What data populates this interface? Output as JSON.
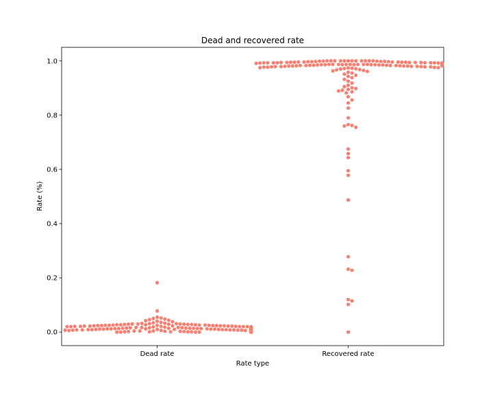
{
  "chart_data": {
    "type": "scatter",
    "subtype": "swarm",
    "title": "Dead and recovered rate",
    "xlabel": "Rate type",
    "ylabel": "Rate (%)",
    "categories": [
      "Dead rate",
      "Recovered rate"
    ],
    "ylim": [
      -0.05,
      1.05
    ],
    "yticks": [
      "0.0",
      "0.2",
      "0.4",
      "0.6",
      "0.8",
      "1.0"
    ],
    "ytick_values": [
      0.0,
      0.2,
      0.4,
      0.6,
      0.8,
      1.0
    ],
    "color": "#fa8072",
    "grid": false,
    "series": [
      {
        "category": "Dead rate",
        "values": [
          0.182,
          0.078,
          0.055,
          0.052,
          0.05,
          0.048,
          0.046,
          0.044,
          0.042,
          0.04,
          0.038,
          0.036,
          0.034,
          0.033,
          0.032,
          0.031,
          0.031,
          0.03,
          0.03,
          0.03,
          0.029,
          0.029,
          0.029,
          0.028,
          0.028,
          0.028,
          0.027,
          0.027,
          0.027,
          0.027,
          0.026,
          0.026,
          0.026,
          0.025,
          0.025,
          0.025,
          0.025,
          0.024,
          0.024,
          0.024,
          0.024,
          0.023,
          0.023,
          0.023,
          0.023,
          0.022,
          0.022,
          0.022,
          0.022,
          0.021,
          0.021,
          0.021,
          0.021,
          0.02,
          0.02,
          0.02,
          0.02,
          0.02,
          0.019,
          0.019,
          0.019,
          0.019,
          0.018,
          0.018,
          0.018,
          0.018,
          0.018,
          0.017,
          0.017,
          0.017,
          0.017,
          0.016,
          0.016,
          0.016,
          0.016,
          0.015,
          0.015,
          0.015,
          0.015,
          0.015,
          0.014,
          0.014,
          0.014,
          0.014,
          0.013,
          0.013,
          0.013,
          0.013,
          0.012,
          0.012,
          0.012,
          0.012,
          0.012,
          0.011,
          0.011,
          0.011,
          0.011,
          0.01,
          0.01,
          0.01,
          0.01,
          0.01,
          0.009,
          0.009,
          0.009,
          0.009,
          0.008,
          0.008,
          0.008,
          0.008,
          0.008,
          0.007,
          0.007,
          0.007,
          0.007,
          0.006,
          0.006,
          0.006,
          0.006,
          0.006,
          0.005,
          0.005,
          0.005,
          0.005,
          0.005,
          0.004,
          0.004,
          0.004,
          0.004,
          0.004,
          0.003,
          0.003,
          0.003,
          0.003,
          0.003,
          0.003,
          0.002,
          0.002,
          0.002,
          0.002,
          0.002,
          0.002,
          0.001,
          0.001,
          0.001,
          0.001,
          0.001,
          0.001,
          0.0,
          0.0,
          0.0,
          0.0,
          0.0,
          0.0,
          0.0,
          0.0,
          0.0,
          0.0,
          0.0,
          0.0,
          0.0,
          0.0,
          0.0,
          0.0,
          0.0,
          0.0,
          0.0,
          0.0,
          0.0,
          0.0,
          0.0,
          0.0,
          0.0,
          0.0,
          0.0,
          0.0,
          0.0,
          0.0,
          0.0,
          0.0,
          0.0,
          0.0,
          0.0,
          0.0,
          0.0,
          0.0,
          0.0,
          0.0,
          0.0,
          0.0,
          0.0,
          0.0,
          0.0,
          0.0,
          0.0,
          0.0,
          0.0,
          0.0,
          0.0,
          0.0
        ]
      },
      {
        "category": "Recovered rate",
        "values": [
          0.0,
          0.102,
          0.115,
          0.12,
          0.228,
          0.232,
          0.278,
          0.487,
          0.578,
          0.595,
          0.643,
          0.658,
          0.675,
          0.755,
          0.76,
          0.762,
          0.765,
          0.79,
          0.826,
          0.845,
          0.856,
          0.868,
          0.882,
          0.886,
          0.889,
          0.892,
          0.895,
          0.898,
          0.901,
          0.905,
          0.91,
          0.918,
          0.925,
          0.932,
          0.938,
          0.943,
          0.947,
          0.951,
          0.955,
          0.958,
          0.961,
          0.963,
          0.965,
          0.967,
          0.968,
          0.97,
          0.971,
          0.972,
          0.973,
          0.974,
          0.975,
          0.975,
          0.976,
          0.977,
          0.977,
          0.978,
          0.978,
          0.979,
          0.979,
          0.98,
          0.98,
          0.98,
          0.981,
          0.981,
          0.981,
          0.982,
          0.982,
          0.982,
          0.983,
          0.983,
          0.983,
          0.983,
          0.984,
          0.984,
          0.984,
          0.984,
          0.985,
          0.985,
          0.985,
          0.985,
          0.985,
          0.986,
          0.986,
          0.986,
          0.986,
          0.986,
          0.987,
          0.987,
          0.987,
          0.987,
          0.987,
          0.987,
          0.988,
          0.988,
          0.988,
          0.988,
          0.988,
          0.988,
          0.989,
          0.989,
          0.989,
          0.989,
          0.989,
          0.989,
          0.989,
          0.99,
          0.99,
          0.99,
          0.99,
          0.99,
          0.99,
          0.99,
          0.991,
          0.991,
          0.991,
          0.991,
          0.991,
          0.991,
          0.991,
          0.992,
          0.992,
          0.992,
          0.992,
          0.992,
          0.992,
          0.992,
          0.993,
          0.993,
          0.993,
          0.993,
          0.993,
          0.993,
          0.994,
          0.994,
          0.994,
          0.994,
          0.994,
          0.995,
          0.995,
          0.995,
          0.995,
          0.996,
          0.996,
          0.996,
          0.996,
          0.997,
          0.997,
          0.997,
          0.998,
          0.998,
          0.998,
          0.999,
          0.999,
          0.999,
          1.0,
          1.0,
          1.0,
          1.0,
          1.0,
          1.0,
          1.0,
          1.0,
          1.0,
          1.0,
          1.0,
          1.0,
          0.978,
          0.979,
          0.981,
          0.982,
          0.984,
          0.985,
          0.986,
          0.987,
          0.988,
          0.989,
          0.99,
          0.991,
          0.992,
          0.993,
          0.983,
          0.984,
          0.985,
          0.986,
          0.987,
          0.988,
          0.989,
          0.99,
          0.991,
          0.992,
          0.986,
          0.987,
          0.988,
          0.989,
          0.99,
          0.991
        ]
      }
    ]
  }
}
